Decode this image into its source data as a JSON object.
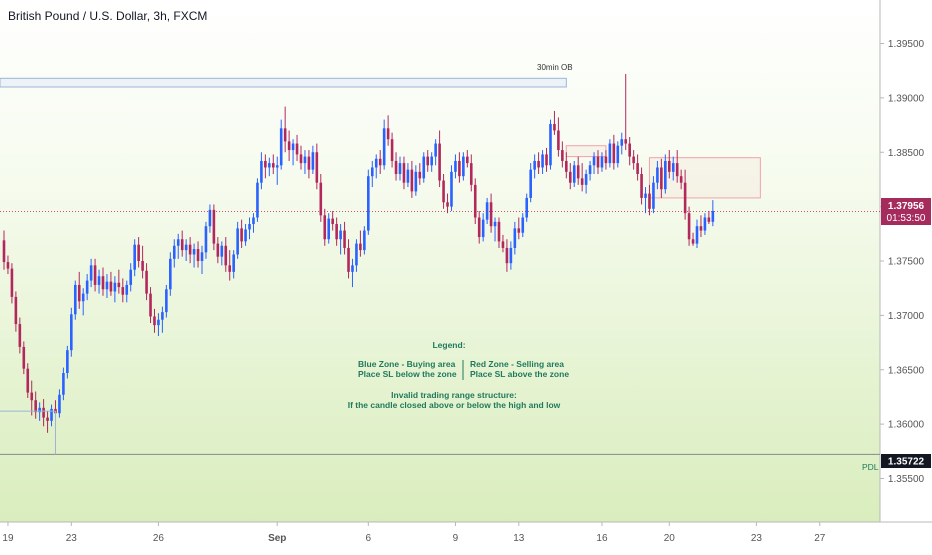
{
  "title": "British Pound / U.S. Dollar, 3h, FXCM",
  "colors": {
    "up": "#2962ff",
    "down": "#b2285c",
    "text": "#1f7a5c",
    "axis_text": "#555555",
    "bg_top": "#ffffff",
    "bg_bottom": "#dcefc0",
    "pdl_line": "#888888",
    "current_price_bg": "#a42b5c"
  },
  "annotations": {
    "ob_label": "30min OB",
    "pdl_label": "PDL",
    "legend_title": "Legend:",
    "legend_blue_1": "Blue Zone - Buying area",
    "legend_blue_2": "Place SL below the zone",
    "legend_red_1": "Red Zone - Selling area",
    "legend_red_2": "Place SL above the zone",
    "legend_invalid_1": "Invalid trading range structure:",
    "legend_invalid_2": "If the candle closed above or below the high and low"
  },
  "chart_data": {
    "type": "candlestick",
    "title": "British Pound / U.S. Dollar, 3h, FXCM",
    "ylim": [
      1.351,
      1.399
    ],
    "xlim": [
      0,
      220
    ],
    "y_ticks": [
      1.395,
      1.39,
      1.385,
      1.38,
      1.375,
      1.37,
      1.365,
      1.36,
      1.355
    ],
    "y_tick_labels": [
      "1.39500",
      "1.39000",
      "1.38500",
      "1.38000",
      "1.37500",
      "1.37000",
      "1.36500",
      "1.36000",
      "1.35500"
    ],
    "x_ticks": [
      {
        "label": "19",
        "i": 1
      },
      {
        "label": "23",
        "i": 17
      },
      {
        "label": "26",
        "i": 39
      },
      {
        "label": "Sep",
        "i": 69
      },
      {
        "label": "6",
        "i": 92
      },
      {
        "label": "9",
        "i": 114
      },
      {
        "label": "13",
        "i": 130
      },
      {
        "label": "16",
        "i": 151
      },
      {
        "label": "20",
        "i": 168
      },
      {
        "label": "23",
        "i": 190
      },
      {
        "label": "27",
        "i": 206
      }
    ],
    "current_price": "1.37956",
    "countdown": "01:53:50",
    "current_price_value": 1.37956,
    "pdl_price": "1.35722",
    "pdl_value": 1.35722,
    "zones": [
      {
        "type": "blue",
        "name": "30min OB",
        "i_start": 0,
        "i_end": 142,
        "y_top": 1.3918,
        "y_bottom": 1.391
      },
      {
        "type": "red",
        "i_start": 164,
        "i_end": 191,
        "y_top": 1.3845,
        "y_bottom": 1.3808
      },
      {
        "type": "red",
        "i_start": 143,
        "i_end": 152,
        "y_top": 1.3856,
        "y_bottom": 1.3846
      }
    ],
    "candles": [
      [
        1.3769,
        1.3778,
        1.3742,
        1.3749
      ],
      [
        1.3749,
        1.3755,
        1.3738,
        1.3743
      ],
      [
        1.3743,
        1.3748,
        1.3711,
        1.3717
      ],
      [
        1.3717,
        1.3722,
        1.3685,
        1.3692
      ],
      [
        1.3692,
        1.3698,
        1.3665,
        1.3671
      ],
      [
        1.3671,
        1.3676,
        1.3646,
        1.3651
      ],
      [
        1.3651,
        1.3656,
        1.3624,
        1.3629
      ],
      [
        1.3629,
        1.364,
        1.3608,
        1.3622
      ],
      [
        1.3622,
        1.363,
        1.3605,
        1.3611
      ],
      [
        1.3611,
        1.362,
        1.3603,
        1.3615
      ],
      [
        1.3615,
        1.3623,
        1.3598,
        1.3606
      ],
      [
        1.3606,
        1.3612,
        1.3592,
        1.3603
      ],
      [
        1.3603,
        1.3618,
        1.3598,
        1.3614
      ],
      [
        1.3614,
        1.3622,
        1.3606,
        1.361
      ],
      [
        1.361,
        1.3632,
        1.3606,
        1.3627
      ],
      [
        1.3627,
        1.3652,
        1.3622,
        1.3647
      ],
      [
        1.3647,
        1.3672,
        1.3642,
        1.3668
      ],
      [
        1.3668,
        1.3707,
        1.3662,
        1.3701
      ],
      [
        1.3701,
        1.3732,
        1.3696,
        1.3728
      ],
      [
        1.3728,
        1.374,
        1.3706,
        1.3713
      ],
      [
        1.3713,
        1.3725,
        1.37,
        1.372
      ],
      [
        1.372,
        1.3738,
        1.3714,
        1.3732
      ],
      [
        1.3732,
        1.3752,
        1.3726,
        1.3746
      ],
      [
        1.3746,
        1.3752,
        1.3722,
        1.3728
      ],
      [
        1.3728,
        1.3742,
        1.372,
        1.3736
      ],
      [
        1.3736,
        1.3744,
        1.3718,
        1.3724
      ],
      [
        1.3724,
        1.3738,
        1.3716,
        1.3731
      ],
      [
        1.3731,
        1.374,
        1.3718,
        1.3722
      ],
      [
        1.3722,
        1.3736,
        1.3712,
        1.373
      ],
      [
        1.373,
        1.3742,
        1.372,
        1.3726
      ],
      [
        1.3726,
        1.3734,
        1.3712,
        1.3719
      ],
      [
        1.3719,
        1.3732,
        1.3712,
        1.3728
      ],
      [
        1.3728,
        1.3748,
        1.3722,
        1.3742
      ],
      [
        1.3742,
        1.377,
        1.3736,
        1.3765
      ],
      [
        1.3765,
        1.3772,
        1.3744,
        1.375
      ],
      [
        1.375,
        1.3764,
        1.3734,
        1.3741
      ],
      [
        1.3741,
        1.3748,
        1.3714,
        1.372
      ],
      [
        1.372,
        1.3726,
        1.3693,
        1.3699
      ],
      [
        1.3699,
        1.3706,
        1.3684,
        1.3691
      ],
      [
        1.3691,
        1.3702,
        1.3681,
        1.3696
      ],
      [
        1.3696,
        1.3708,
        1.3684,
        1.3703
      ],
      [
        1.3703,
        1.3728,
        1.3698,
        1.3724
      ],
      [
        1.3724,
        1.3758,
        1.3718,
        1.3752
      ],
      [
        1.3752,
        1.377,
        1.3744,
        1.3764
      ],
      [
        1.3764,
        1.3775,
        1.3752,
        1.377
      ],
      [
        1.377,
        1.3778,
        1.3754,
        1.376
      ],
      [
        1.376,
        1.377,
        1.375,
        1.3765
      ],
      [
        1.3765,
        1.3772,
        1.3748,
        1.3756
      ],
      [
        1.3756,
        1.3766,
        1.3744,
        1.3761
      ],
      [
        1.3761,
        1.3768,
        1.3744,
        1.375
      ],
      [
        1.375,
        1.3764,
        1.3738,
        1.3758
      ],
      [
        1.3758,
        1.3786,
        1.3752,
        1.3782
      ],
      [
        1.3782,
        1.3802,
        1.3776,
        1.3797
      ],
      [
        1.3797,
        1.3802,
        1.376,
        1.3766
      ],
      [
        1.3766,
        1.3772,
        1.3748,
        1.3754
      ],
      [
        1.3754,
        1.3768,
        1.3746,
        1.3764
      ],
      [
        1.3764,
        1.3772,
        1.374,
        1.3746
      ],
      [
        1.3746,
        1.376,
        1.3732,
        1.374
      ],
      [
        1.374,
        1.376,
        1.3734,
        1.3756
      ],
      [
        1.3756,
        1.3786,
        1.3752,
        1.378
      ],
      [
        1.378,
        1.3788,
        1.3762,
        1.3768
      ],
      [
        1.3768,
        1.3784,
        1.3764,
        1.3779
      ],
      [
        1.3779,
        1.379,
        1.377,
        1.3784
      ],
      [
        1.3784,
        1.3794,
        1.3776,
        1.379
      ],
      [
        1.379,
        1.3826,
        1.3786,
        1.3822
      ],
      [
        1.3822,
        1.385,
        1.3816,
        1.3842
      ],
      [
        1.3842,
        1.3848,
        1.3826,
        1.3836
      ],
      [
        1.3836,
        1.3845,
        1.3828,
        1.384
      ],
      [
        1.384,
        1.3848,
        1.383,
        1.3836
      ],
      [
        1.3836,
        1.3846,
        1.382,
        1.3838
      ],
      [
        1.3838,
        1.388,
        1.3834,
        1.3872
      ],
      [
        1.3872,
        1.3892,
        1.385,
        1.386
      ],
      [
        1.386,
        1.387,
        1.3842,
        1.3852
      ],
      [
        1.3852,
        1.3862,
        1.3838,
        1.3858
      ],
      [
        1.3858,
        1.3866,
        1.3842,
        1.3848
      ],
      [
        1.3848,
        1.3856,
        1.3834,
        1.384
      ],
      [
        1.384,
        1.3852,
        1.383,
        1.3846
      ],
      [
        1.3846,
        1.3852,
        1.3826,
        1.3834
      ],
      [
        1.3834,
        1.3856,
        1.383,
        1.385
      ],
      [
        1.385,
        1.3858,
        1.3816,
        1.3822
      ],
      [
        1.3822,
        1.383,
        1.3786,
        1.3792
      ],
      [
        1.3792,
        1.3798,
        1.3764,
        1.377
      ],
      [
        1.377,
        1.3794,
        1.3766,
        1.3789
      ],
      [
        1.3789,
        1.3796,
        1.3778,
        1.3784
      ],
      [
        1.3784,
        1.379,
        1.3764,
        1.377
      ],
      [
        1.377,
        1.3784,
        1.3756,
        1.3778
      ],
      [
        1.3778,
        1.3786,
        1.3756,
        1.3762
      ],
      [
        1.3762,
        1.377,
        1.3734,
        1.374
      ],
      [
        1.374,
        1.3752,
        1.3726,
        1.3746
      ],
      [
        1.3746,
        1.377,
        1.374,
        1.3766
      ],
      [
        1.3766,
        1.3778,
        1.3754,
        1.376
      ],
      [
        1.376,
        1.3782,
        1.3756,
        1.3778
      ],
      [
        1.3778,
        1.3834,
        1.3774,
        1.3828
      ],
      [
        1.3828,
        1.3842,
        1.3818,
        1.3836
      ],
      [
        1.3836,
        1.3848,
        1.3826,
        1.3844
      ],
      [
        1.3844,
        1.3852,
        1.383,
        1.3838
      ],
      [
        1.3838,
        1.388,
        1.3834,
        1.3872
      ],
      [
        1.3872,
        1.3884,
        1.3856,
        1.3862
      ],
      [
        1.3862,
        1.3868,
        1.3836,
        1.3842
      ],
      [
        1.3842,
        1.385,
        1.3824,
        1.383
      ],
      [
        1.383,
        1.3846,
        1.3824,
        1.384
      ],
      [
        1.384,
        1.3846,
        1.3816,
        1.3822
      ],
      [
        1.3822,
        1.384,
        1.3818,
        1.3834
      ],
      [
        1.3834,
        1.3842,
        1.3808,
        1.3814
      ],
      [
        1.3814,
        1.3838,
        1.381,
        1.3832
      ],
      [
        1.3832,
        1.384,
        1.382,
        1.3826
      ],
      [
        1.3826,
        1.385,
        1.3822,
        1.3846
      ],
      [
        1.3846,
        1.3852,
        1.3832,
        1.3838
      ],
      [
        1.3838,
        1.385,
        1.3832,
        1.3846
      ],
      [
        1.3846,
        1.3862,
        1.3838,
        1.3858
      ],
      [
        1.3858,
        1.387,
        1.3818,
        1.3824
      ],
      [
        1.3824,
        1.383,
        1.3798,
        1.3804
      ],
      [
        1.3804,
        1.3812,
        1.3794,
        1.38
      ],
      [
        1.38,
        1.3838,
        1.3796,
        1.3832
      ],
      [
        1.3832,
        1.3848,
        1.3826,
        1.3842
      ],
      [
        1.3842,
        1.385,
        1.3822,
        1.3828
      ],
      [
        1.3828,
        1.385,
        1.3824,
        1.3846
      ],
      [
        1.3846,
        1.3852,
        1.3836,
        1.384
      ],
      [
        1.384,
        1.3848,
        1.3814,
        1.382
      ],
      [
        1.382,
        1.3826,
        1.3784,
        1.379
      ],
      [
        1.379,
        1.3796,
        1.3766,
        1.3772
      ],
      [
        1.3772,
        1.3794,
        1.3768,
        1.3788
      ],
      [
        1.3788,
        1.3808,
        1.3784,
        1.3804
      ],
      [
        1.3804,
        1.3812,
        1.3776,
        1.3782
      ],
      [
        1.3782,
        1.379,
        1.3768,
        1.3786
      ],
      [
        1.3786,
        1.379,
        1.3762,
        1.3768
      ],
      [
        1.3768,
        1.3774,
        1.3758,
        1.3762
      ],
      [
        1.3762,
        1.377,
        1.374,
        1.3748
      ],
      [
        1.3748,
        1.3768,
        1.3742,
        1.3762
      ],
      [
        1.3762,
        1.3786,
        1.3756,
        1.378
      ],
      [
        1.378,
        1.379,
        1.377,
        1.3776
      ],
      [
        1.3776,
        1.3794,
        1.3772,
        1.379
      ],
      [
        1.379,
        1.3812,
        1.3786,
        1.3808
      ],
      [
        1.3808,
        1.384,
        1.3804,
        1.3834
      ],
      [
        1.3834,
        1.3848,
        1.3826,
        1.3842
      ],
      [
        1.3842,
        1.385,
        1.383,
        1.3836
      ],
      [
        1.3836,
        1.3852,
        1.383,
        1.3848
      ],
      [
        1.3848,
        1.3854,
        1.3832,
        1.3838
      ],
      [
        1.3838,
        1.388,
        1.3834,
        1.3876
      ],
      [
        1.3876,
        1.3888,
        1.3866,
        1.387
      ],
      [
        1.387,
        1.3882,
        1.3846,
        1.3852
      ],
      [
        1.3852,
        1.386,
        1.3836,
        1.3842
      ],
      [
        1.3842,
        1.385,
        1.3826,
        1.3832
      ],
      [
        1.3832,
        1.384,
        1.3816,
        1.3822
      ],
      [
        1.3822,
        1.3842,
        1.3818,
        1.3838
      ],
      [
        1.3838,
        1.3846,
        1.382,
        1.3826
      ],
      [
        1.3826,
        1.384,
        1.3814,
        1.382
      ],
      [
        1.382,
        1.3834,
        1.3812,
        1.383
      ],
      [
        1.383,
        1.3842,
        1.3824,
        1.3838
      ],
      [
        1.3838,
        1.385,
        1.383,
        1.3846
      ],
      [
        1.3846,
        1.3852,
        1.383,
        1.3836
      ],
      [
        1.3836,
        1.385,
        1.3832,
        1.3846
      ],
      [
        1.3846,
        1.3852,
        1.3834,
        1.384
      ],
      [
        1.384,
        1.3862,
        1.3836,
        1.3858
      ],
      [
        1.3858,
        1.3866,
        1.3834,
        1.384
      ],
      [
        1.384,
        1.386,
        1.3836,
        1.3856
      ],
      [
        1.3856,
        1.3868,
        1.3848,
        1.3862
      ],
      [
        1.3862,
        1.3922,
        1.3852,
        1.3858
      ],
      [
        1.3858,
        1.3864,
        1.3838,
        1.3846
      ],
      [
        1.3846,
        1.3852,
        1.3834,
        1.384
      ],
      [
        1.384,
        1.3848,
        1.3824,
        1.383
      ],
      [
        1.383,
        1.3836,
        1.3802,
        1.3808
      ],
      [
        1.3808,
        1.3818,
        1.3794,
        1.3812
      ],
      [
        1.3812,
        1.382,
        1.3792,
        1.3798
      ],
      [
        1.3798,
        1.3828,
        1.3794,
        1.3822
      ],
      [
        1.3822,
        1.3842,
        1.3816,
        1.3836
      ],
      [
        1.3836,
        1.3844,
        1.3808,
        1.3816
      ],
      [
        1.3816,
        1.3848,
        1.3812,
        1.3842
      ],
      [
        1.3842,
        1.3852,
        1.3826,
        1.3832
      ],
      [
        1.3832,
        1.3846,
        1.3824,
        1.384
      ],
      [
        1.384,
        1.3852,
        1.3822,
        1.3828
      ],
      [
        1.3828,
        1.3834,
        1.3816,
        1.3822
      ],
      [
        1.3822,
        1.3834,
        1.3788,
        1.3794
      ],
      [
        1.3794,
        1.38,
        1.3764,
        1.377
      ],
      [
        1.377,
        1.3776,
        1.3764,
        1.3766
      ],
      [
        1.3766,
        1.3788,
        1.3762,
        1.3782
      ],
      [
        1.3782,
        1.3792,
        1.3772,
        1.3778
      ],
      [
        1.3778,
        1.3794,
        1.3774,
        1.379
      ],
      [
        1.379,
        1.3796,
        1.3784,
        1.3786
      ],
      [
        1.3786,
        1.3806,
        1.3782,
        1.3796
      ]
    ]
  }
}
